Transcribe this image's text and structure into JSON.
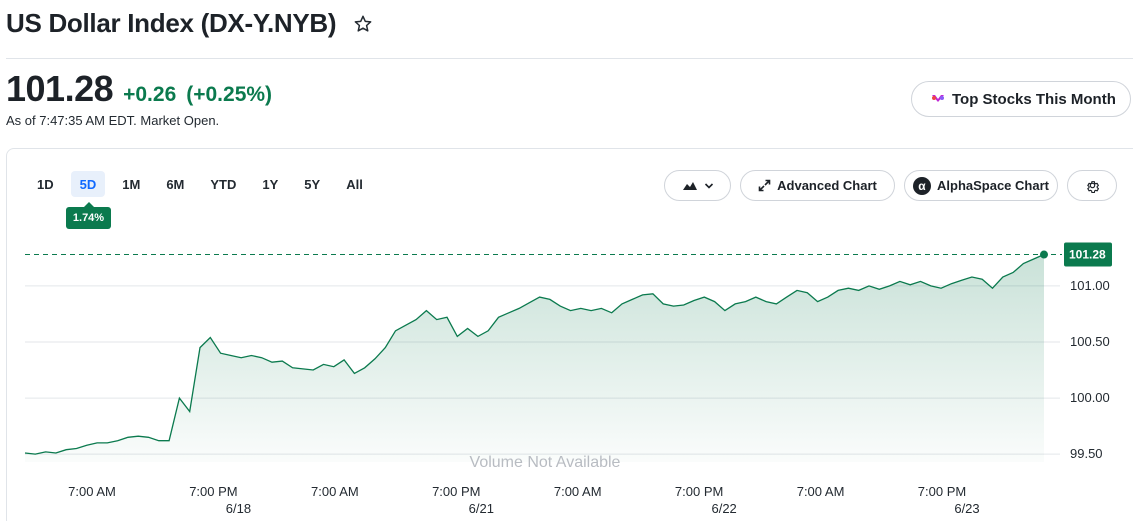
{
  "header": {
    "title": "US Dollar Index (DX-Y.NYB)"
  },
  "quote": {
    "price": "101.28",
    "change": "+0.26",
    "change_pct": "(+0.25%)",
    "as_of": "As of 7:47:35 AM EDT. Market Open."
  },
  "promo": {
    "label": "Top Stocks This Month"
  },
  "ranges": [
    "1D",
    "5D",
    "1M",
    "6M",
    "YTD",
    "1Y",
    "5Y",
    "All"
  ],
  "active_range": "5D",
  "range_change_badge": "1.74%",
  "toolbar": {
    "advanced_chart": "Advanced Chart",
    "alphaspace_chart": "AlphaSpace Chart"
  },
  "colors": {
    "up_green": "#0b7a4e",
    "accent_blue": "#0f69ff"
  },
  "chart_data": {
    "type": "area",
    "volume_note": "Volume Not Available",
    "current_value": 101.28,
    "current_label": "101.28",
    "ylim": [
      99.43,
      101.57
    ],
    "y_ticks": [
      {
        "value": 101.0,
        "label": "101.00"
      },
      {
        "value": 100.5,
        "label": "100.50"
      },
      {
        "value": 100.0,
        "label": "100.00"
      },
      {
        "value": 99.5,
        "label": "99.50"
      }
    ],
    "x_ticks": [
      {
        "label": "7:00 AM",
        "date": ""
      },
      {
        "label": "7:00 PM",
        "date": "6/18"
      },
      {
        "label": "7:00 AM",
        "date": ""
      },
      {
        "label": "7:00 PM",
        "date": "6/21"
      },
      {
        "label": "7:00 AM",
        "date": ""
      },
      {
        "label": "7:00 PM",
        "date": "6/22"
      },
      {
        "label": "7:00 AM",
        "date": ""
      },
      {
        "label": "7:00 PM",
        "date": "6/23"
      }
    ],
    "x_label": "",
    "y_label": "",
    "series": [
      {
        "values": [
          99.51,
          99.5,
          99.52,
          99.51,
          99.54,
          99.55,
          99.58,
          99.6,
          99.6,
          99.62,
          99.65,
          99.66,
          99.65,
          99.62,
          99.62,
          100.0,
          99.88,
          100.45,
          100.54,
          100.4,
          100.38,
          100.36,
          100.38,
          100.36,
          100.32,
          100.33,
          100.27,
          100.26,
          100.25,
          100.3,
          100.28,
          100.34,
          100.22,
          100.27,
          100.35,
          100.45,
          100.6,
          100.65,
          100.7,
          100.78,
          100.7,
          100.72,
          100.55,
          100.62,
          100.55,
          100.6,
          100.72,
          100.76,
          100.8,
          100.85,
          100.9,
          100.88,
          100.82,
          100.78,
          100.8,
          100.78,
          100.8,
          100.76,
          100.84,
          100.88,
          100.92,
          100.93,
          100.84,
          100.82,
          100.83,
          100.87,
          100.9,
          100.86,
          100.78,
          100.84,
          100.86,
          100.9,
          100.86,
          100.84,
          100.9,
          100.96,
          100.94,
          100.86,
          100.9,
          100.96,
          100.98,
          100.96,
          101.0,
          100.97,
          101.0,
          101.04,
          101.01,
          101.04,
          101.0,
          100.98,
          101.02,
          101.05,
          101.08,
          101.06,
          100.98,
          101.08,
          101.12,
          101.2,
          101.24,
          101.28
        ]
      }
    ]
  }
}
